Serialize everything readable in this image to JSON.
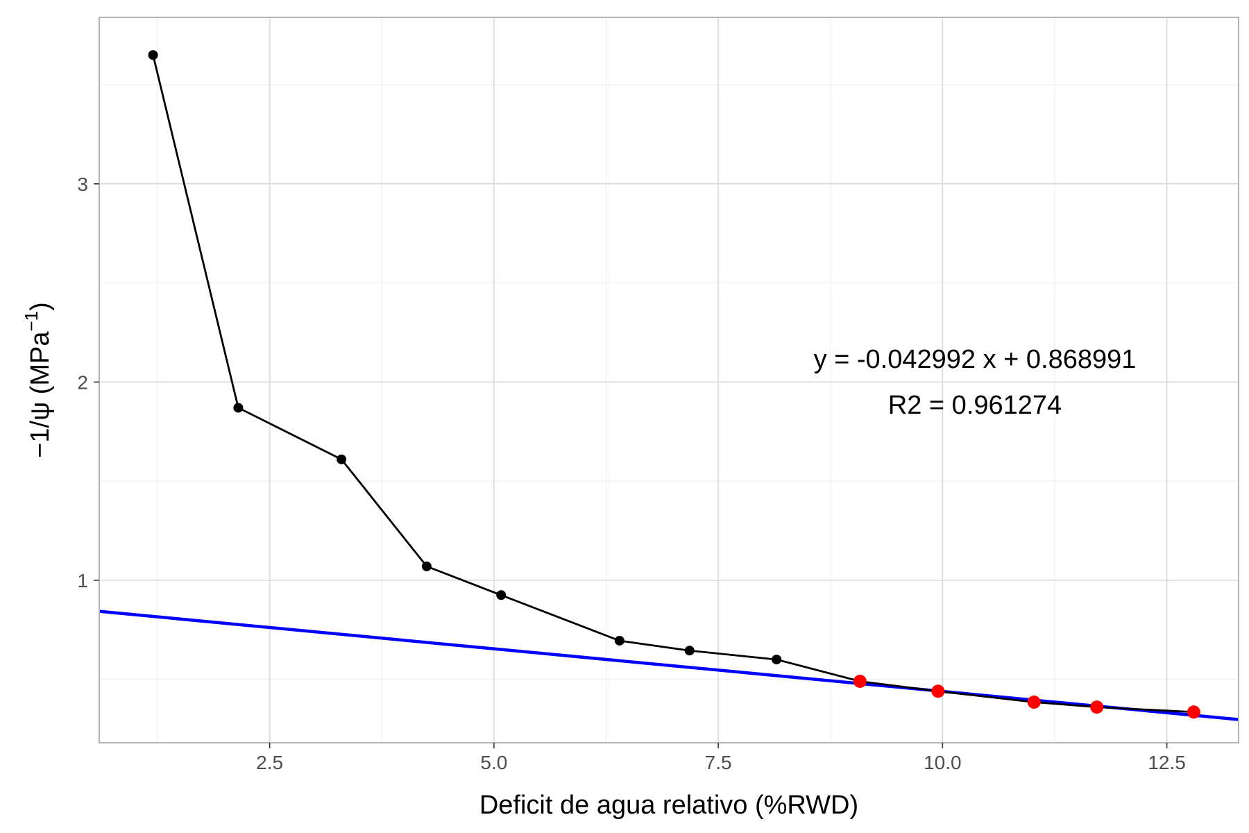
{
  "chart_data": {
    "type": "scatter",
    "title": "",
    "xlabel": "Deficit de agua relativo (%RWD)",
    "ylabel": {
      "prefix": "−1/ψ (MPa",
      "superscript": "−1",
      "suffix": ")"
    },
    "xlim": [
      0.6,
      13.3
    ],
    "ylim": [
      0.18,
      3.84
    ],
    "x_ticks": [
      2.5,
      5.0,
      7.5,
      10.0,
      12.5
    ],
    "x_tick_labels": [
      "2.5",
      "5.0",
      "7.5",
      "10.0",
      "12.5"
    ],
    "x_minor_ticks": [
      1.25,
      3.75,
      6.25,
      8.75,
      11.25
    ],
    "y_ticks": [
      1,
      2,
      3
    ],
    "y_tick_labels": [
      "1",
      "2",
      "3"
    ],
    "y_minor_ticks": [
      0.5,
      1.5,
      2.5,
      3.5
    ],
    "grid": true,
    "series": [
      {
        "kind": "line-points",
        "color": "#000000",
        "x": [
          1.2,
          2.15,
          3.3,
          4.25,
          5.08,
          6.4,
          7.18,
          8.15
        ],
        "y": [
          3.65,
          1.87,
          1.61,
          1.07,
          0.925,
          0.695,
          0.645,
          0.6
        ]
      },
      {
        "kind": "line-points",
        "color": "#ff0000",
        "x": [
          9.08,
          9.95,
          11.02,
          11.72,
          12.8
        ],
        "y": [
          0.49,
          0.44,
          0.385,
          0.36,
          0.335
        ]
      },
      {
        "kind": "fit-line",
        "color": "#0000ff",
        "slope": -0.042992,
        "intercept": 0.868991
      }
    ],
    "annotations": [
      "y = -0.042992 x + 0.868991",
      "R2  = 0.961274"
    ]
  }
}
